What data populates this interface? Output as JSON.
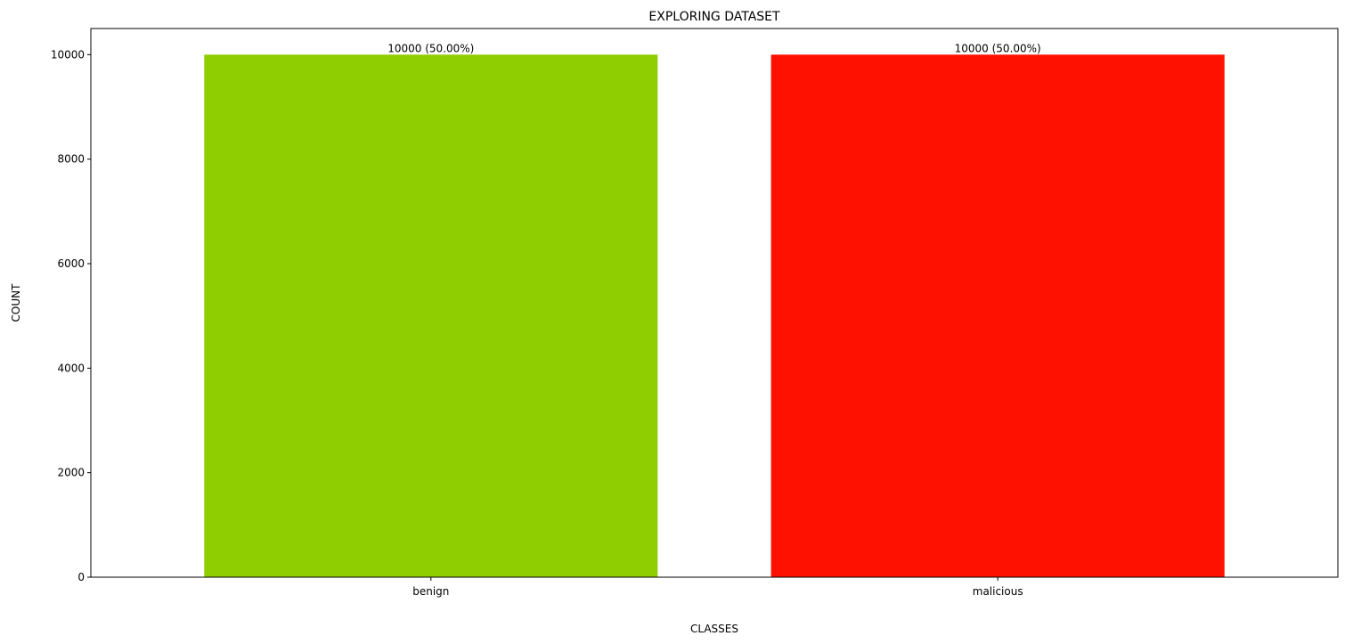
{
  "chart_data": {
    "type": "bar",
    "title": "EXPLORING DATASET",
    "xlabel": "CLASSES",
    "ylabel": "COUNT",
    "categories": [
      "benign",
      "malicious"
    ],
    "values": [
      10000,
      10000
    ],
    "data_labels": [
      "10000 (50.00%)",
      "10000 (50.00%)"
    ],
    "bar_colors": [
      "#8fce00",
      "#ff1100"
    ],
    "ylim": [
      0,
      10500
    ],
    "yticks": [
      0,
      2000,
      4000,
      6000,
      8000,
      10000
    ],
    "grid": false,
    "legend": "none"
  }
}
